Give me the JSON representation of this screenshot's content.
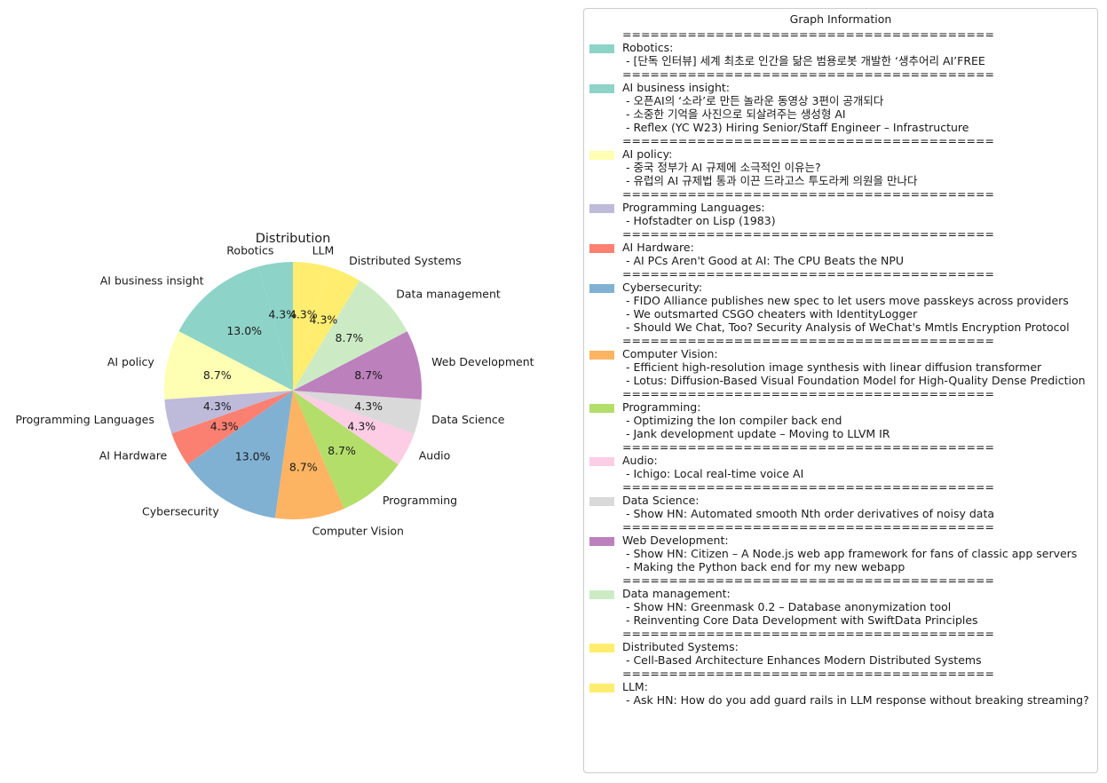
{
  "chart_data": {
    "type": "pie",
    "title": "Distribution",
    "slices": [
      {
        "label": "Robotics",
        "value": 4.3,
        "pct_label": "4.3%",
        "color": "#8dd3c7"
      },
      {
        "label": "AI business insight",
        "value": 13.0,
        "pct_label": "13.0%",
        "color": "#8dd3c7"
      },
      {
        "label": "AI policy",
        "value": 8.7,
        "pct_label": "8.7%",
        "color": "#ffffb3"
      },
      {
        "label": "Programming Languages",
        "value": 4.3,
        "pct_label": "4.3%",
        "color": "#bebada"
      },
      {
        "label": "AI Hardware",
        "value": 4.3,
        "pct_label": "4.3%",
        "color": "#fb8072"
      },
      {
        "label": "Cybersecurity",
        "value": 13.0,
        "pct_label": "13.0%",
        "color": "#80b1d3"
      },
      {
        "label": "Computer Vision",
        "value": 8.7,
        "pct_label": "8.7%",
        "color": "#fdb462"
      },
      {
        "label": "Programming",
        "value": 8.7,
        "pct_label": "8.7%",
        "color": "#b3de69"
      },
      {
        "label": "Audio",
        "value": 4.3,
        "pct_label": "4.3%",
        "color": "#fccde5"
      },
      {
        "label": "Data Science",
        "value": 4.3,
        "pct_label": "4.3%",
        "color": "#d9d9d9"
      },
      {
        "label": "Web Development",
        "value": 8.7,
        "pct_label": "8.7%",
        "color": "#bc80bd"
      },
      {
        "label": "Data management",
        "value": 8.7,
        "pct_label": "8.7%",
        "color": "#ccebc5"
      },
      {
        "label": "Distributed Systems",
        "value": 4.3,
        "pct_label": "4.3%",
        "color": "#ffed6f"
      },
      {
        "label": "LLM",
        "value": 4.3,
        "pct_label": "4.3%",
        "color": "#ffed6f"
      }
    ],
    "start_angle_deg": 90,
    "direction": "counterclockwise",
    "legend": {
      "title": "Graph Information",
      "placement": "right",
      "separator": "========================================",
      "entries": [
        {
          "category": "Robotics:",
          "color": "#8dd3c7",
          "items": [
            " - [단독 인터뷰] 세계 최초로 인간을 닮은 범용로봇 개발한 ‘생추어리 AI’FREE"
          ]
        },
        {
          "category": "AI business insight:",
          "color": "#8dd3c7",
          "items": [
            " - 오픈AI의 ‘소라’로 만든 놀라운 동영상 3편이 공개되다",
            " - 소중한 기억을 사진으로 되살려주는 생성형 AI",
            " - Reflex (YC W23) Hiring Senior/Staff Engineer – Infrastructure"
          ]
        },
        {
          "category": "AI policy:",
          "color": "#ffffb3",
          "items": [
            " - 중국 정부가 AI 규제에 소극적인 이유는?",
            " - 유럽의 AI 규제법 통과 이끈 드라고스 투도라케 의원을 만나다"
          ]
        },
        {
          "category": "Programming Languages:",
          "color": "#bebada",
          "items": [
            " - Hofstadter on Lisp (1983)"
          ]
        },
        {
          "category": "AI Hardware:",
          "color": "#fb8072",
          "items": [
            " - AI PCs Aren't Good at AI: The CPU Beats the NPU"
          ]
        },
        {
          "category": "Cybersecurity:",
          "color": "#80b1d3",
          "items": [
            " - FIDO Alliance publishes new spec to let users move passkeys across providers",
            " - We outsmarted CSGO cheaters with IdentityLogger",
            " - Should We Chat, Too? Security Analysis of WeChat's Mmtls Encryption Protocol"
          ]
        },
        {
          "category": "Computer Vision:",
          "color": "#fdb462",
          "items": [
            " - Efficient high-resolution image synthesis with linear diffusion transformer",
            " - Lotus: Diffusion-Based Visual Foundation Model for High-Quality Dense Prediction"
          ]
        },
        {
          "category": "Programming:",
          "color": "#b3de69",
          "items": [
            " - Optimizing the Ion compiler back end",
            " - Jank development update – Moving to LLVM IR"
          ]
        },
        {
          "category": "Audio:",
          "color": "#fccde5",
          "items": [
            " - Ichigo: Local real-time voice AI"
          ]
        },
        {
          "category": "Data Science:",
          "color": "#d9d9d9",
          "items": [
            " - Show HN: Automated smooth Nth order derivatives of noisy data"
          ]
        },
        {
          "category": "Web Development:",
          "color": "#bc80bd",
          "items": [
            " - Show HN: Citizen – A Node.js web app framework for fans of classic app servers",
            " - Making the Python back end for my new webapp"
          ]
        },
        {
          "category": "Data management:",
          "color": "#ccebc5",
          "items": [
            " - Show HN: Greenmask 0.2 – Database anonymization tool",
            " - Reinventing Core Data Development with SwiftData Principles"
          ]
        },
        {
          "category": "Distributed Systems:",
          "color": "#ffed6f",
          "items": [
            " - Cell-Based Architecture Enhances Modern Distributed Systems"
          ]
        },
        {
          "category": "LLM:",
          "color": "#ffed6f",
          "items": [
            " - Ask HN: How do you add guard rails in LLM response without breaking streaming?"
          ]
        }
      ]
    }
  }
}
